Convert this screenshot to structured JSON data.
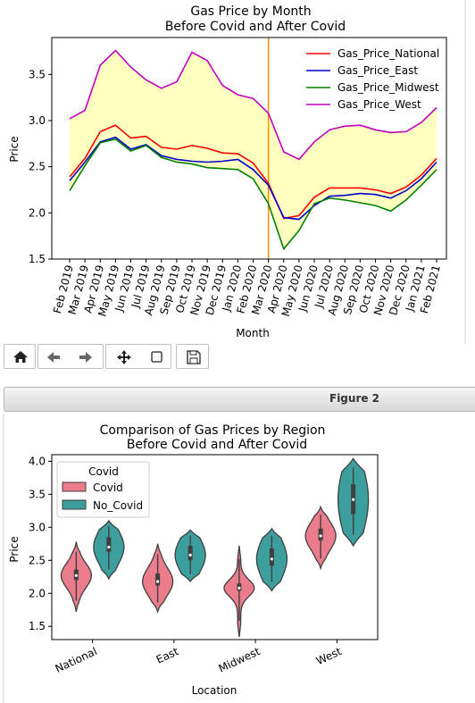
{
  "figure1": {
    "title_line1": "Gas Price by Month",
    "title_line2": "Before Covid and After Covid",
    "xlabel": "Month",
    "ylabel": "Price",
    "chart_data": {
      "type": "line",
      "title": "Gas Price by Month\nBefore Covid and After Covid",
      "xlabel": "Month",
      "ylabel": "Price",
      "ylim": [
        1.5,
        3.9
      ],
      "yticks": [
        "1.5",
        "2.0",
        "2.5",
        "3.0",
        "3.5"
      ],
      "categories": [
        "Feb 2019",
        "Mar 2019",
        "Apr 2019",
        "May 2019",
        "Jun 2019",
        "Jul 2019",
        "Aug 2019",
        "Sep 2019",
        "Oct 2019",
        "Nov 2019",
        "Dec 2019",
        "Jan 2020",
        "Feb 2020",
        "Mar 2020",
        "Apr 2020",
        "May 2020",
        "Jun 2020",
        "Jul 2020",
        "Aug 2020",
        "Sep 2020",
        "Oct 2020",
        "Nov 2020",
        "Dec 2020",
        "Jan 2021",
        "Feb 2021"
      ],
      "vline_at": "Mar 2020",
      "fill_between": [
        "Gas_Price_Midwest",
        "Gas_Price_West"
      ],
      "legend_position": "top-right",
      "series": [
        {
          "name": "Gas_Price_National",
          "color": "#ff0000",
          "values": [
            2.39,
            2.59,
            2.88,
            2.95,
            2.81,
            2.83,
            2.71,
            2.69,
            2.73,
            2.7,
            2.65,
            2.64,
            2.54,
            2.32,
            1.94,
            1.97,
            2.17,
            2.27,
            2.27,
            2.27,
            2.25,
            2.21,
            2.28,
            2.41,
            2.59
          ]
        },
        {
          "name": "Gas_Price_East",
          "color": "#0000cc",
          "values": [
            2.35,
            2.55,
            2.77,
            2.82,
            2.69,
            2.74,
            2.62,
            2.58,
            2.56,
            2.55,
            2.56,
            2.58,
            2.47,
            2.3,
            1.95,
            1.93,
            2.08,
            2.18,
            2.19,
            2.21,
            2.2,
            2.16,
            2.24,
            2.37,
            2.55
          ]
        },
        {
          "name": "Gas_Price_Midwest",
          "color": "#008000",
          "values": [
            2.24,
            2.51,
            2.76,
            2.8,
            2.67,
            2.73,
            2.6,
            2.55,
            2.53,
            2.49,
            2.48,
            2.47,
            2.37,
            2.1,
            1.61,
            1.81,
            2.1,
            2.16,
            2.14,
            2.11,
            2.08,
            2.02,
            2.14,
            2.3,
            2.47
          ]
        },
        {
          "name": "Gas_Price_West",
          "color": "#bf00bf",
          "values": [
            3.02,
            3.11,
            3.6,
            3.76,
            3.58,
            3.44,
            3.35,
            3.42,
            3.74,
            3.65,
            3.38,
            3.28,
            3.24,
            3.08,
            2.66,
            2.58,
            2.77,
            2.9,
            2.94,
            2.95,
            2.9,
            2.87,
            2.88,
            2.98,
            3.14
          ]
        }
      ]
    }
  },
  "toolbar": {
    "buttons": [
      {
        "name": "home-button",
        "icon": "home-icon"
      },
      {
        "name": "back-button",
        "icon": "arrow-left-icon"
      },
      {
        "name": "forward-button",
        "icon": "arrow-right-icon"
      },
      {
        "name": "pan-button",
        "icon": "move-icon"
      },
      {
        "name": "zoom-button",
        "icon": "zoom-rect-icon"
      },
      {
        "name": "save-button",
        "icon": "floppy-disk-icon"
      }
    ]
  },
  "figure2_window": {
    "title": "Figure 2"
  },
  "figure2": {
    "title_line1": "Comparison of Gas Prices by Region",
    "title_line2": "Before Covid and After Covid",
    "xlabel": "Location",
    "ylabel": "Price",
    "legend_title": "Covid",
    "chart_data": {
      "type": "violin",
      "title": "Comparison of Gas Prices by Region\nBefore Covid and After Covid",
      "xlabel": "Location",
      "ylabel": "Price",
      "ylim": [
        1.3,
        4.1
      ],
      "yticks": [
        "1.5",
        "2.0",
        "2.5",
        "3.0",
        "3.5",
        "4.0"
      ],
      "categories": [
        "National",
        "East",
        "Midwest",
        "West"
      ],
      "legend_title": "Covid",
      "legend_position": "top-left",
      "series": [
        {
          "name": "Covid",
          "color": "#ea7c8c",
          "min": [
            1.72,
            1.72,
            1.34,
            2.38
          ],
          "q1": [
            2.2,
            2.12,
            2.04,
            2.8
          ],
          "median": [
            2.27,
            2.18,
            2.08,
            2.87
          ],
          "q3": [
            2.36,
            2.3,
            2.15,
            2.98
          ],
          "max": [
            2.78,
            2.75,
            2.72,
            3.31
          ]
        },
        {
          "name": "No_Covid",
          "color": "#3c9f9d",
          "min": [
            2.22,
            2.18,
            2.04,
            2.72
          ],
          "q1": [
            2.63,
            2.5,
            2.42,
            3.2
          ],
          "median": [
            2.7,
            2.58,
            2.52,
            3.42
          ],
          "q3": [
            2.85,
            2.72,
            2.68,
            3.65
          ],
          "max": [
            3.1,
            2.96,
            2.98,
            4.04
          ]
        }
      ]
    }
  }
}
